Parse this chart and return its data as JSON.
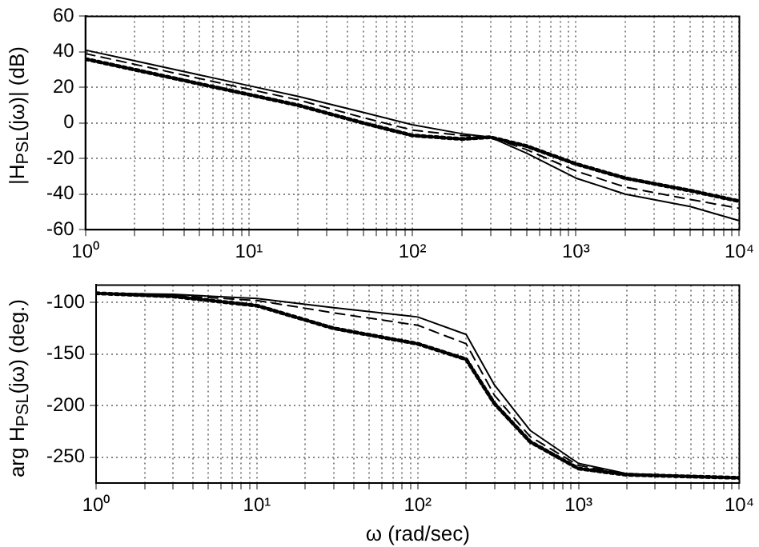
{
  "chart_data": [
    {
      "type": "line",
      "ylabel": "|H$_{PSL}$(jω)| (dB)",
      "log": "x",
      "grid": true,
      "x": [
        1,
        2,
        5,
        10,
        20,
        50,
        100,
        200,
        300,
        500,
        1000,
        2000,
        5000,
        10000
      ],
      "series": [
        {
          "color": "#000000",
          "line_style": "solid",
          "values": [
            41,
            35,
            27,
            21,
            15,
            6,
            -1,
            -6,
            -8,
            -17,
            -31,
            -40,
            -47,
            -55
          ]
        },
        {
          "color": "#000000",
          "line_style": "dashed",
          "values": [
            39,
            33,
            25,
            19,
            13,
            3,
            -4,
            -7,
            -8,
            -15,
            -27,
            -36,
            -43,
            -48
          ]
        },
        {
          "color": "#000000",
          "line_style": "dotted",
          "values": [
            36,
            30,
            22,
            16,
            10,
            0,
            -7,
            -9,
            -8,
            -13,
            -23,
            -31,
            -38,
            -44
          ]
        }
      ],
      "xlim": [
        1,
        10000
      ],
      "xticks": [
        {
          "value": 1,
          "label": "10⁰"
        },
        {
          "value": 2,
          "label": null
        },
        {
          "value": 3,
          "label": null
        },
        {
          "value": 4,
          "label": null
        },
        {
          "value": 5,
          "label": null
        },
        {
          "value": 6,
          "label": null
        },
        {
          "value": 7,
          "label": null
        },
        {
          "value": 8,
          "label": null
        },
        {
          "value": 9,
          "label": null
        },
        {
          "value": 10,
          "label": "10¹"
        },
        {
          "value": 20,
          "label": null
        },
        {
          "value": 30,
          "label": null
        },
        {
          "value": 40,
          "label": null
        },
        {
          "value": 50,
          "label": null
        },
        {
          "value": 60,
          "label": null
        },
        {
          "value": 70,
          "label": null
        },
        {
          "value": 80,
          "label": null
        },
        {
          "value": 90,
          "label": null
        },
        {
          "value": 100,
          "label": "10²"
        },
        {
          "value": 200,
          "label": null
        },
        {
          "value": 300,
          "label": null
        },
        {
          "value": 400,
          "label": null
        },
        {
          "value": 500,
          "label": null
        },
        {
          "value": 600,
          "label": null
        },
        {
          "value": 700,
          "label": null
        },
        {
          "value": 800,
          "label": null
        },
        {
          "value": 900,
          "label": null
        },
        {
          "value": 1000,
          "label": "10³"
        },
        {
          "value": 2000,
          "label": null
        },
        {
          "value": 3000,
          "label": null
        },
        {
          "value": 4000,
          "label": null
        },
        {
          "value": 5000,
          "label": null
        },
        {
          "value": 6000,
          "label": null
        },
        {
          "value": 7000,
          "label": null
        },
        {
          "value": 8000,
          "label": null
        },
        {
          "value": 9000,
          "label": null
        },
        {
          "value": 10000,
          "label": "10⁴"
        }
      ],
      "ylim": [
        -60,
        60
      ],
      "yticks": [
        -60,
        -40,
        -20,
        0,
        20,
        40,
        60
      ]
    },
    {
      "type": "line",
      "xlabel": "ω (rad/sec)",
      "ylabel": "arg H$_{PSL}$(jω) (deg.)",
      "log": "x",
      "grid": true,
      "x": [
        1,
        3,
        10,
        30,
        100,
        200,
        300,
        500,
        1000,
        2000,
        10000
      ],
      "series": [
        {
          "color": "#000000",
          "line_style": "solid",
          "values": [
            -91,
            -92,
            -96,
            -105,
            -114,
            -131,
            -180,
            -224,
            -256,
            -266,
            -270
          ]
        },
        {
          "color": "#000000",
          "line_style": "dashed",
          "values": [
            -91,
            -93,
            -98,
            -110,
            -122,
            -140,
            -190,
            -230,
            -258,
            -266,
            -270
          ]
        },
        {
          "color": "#000000",
          "line_style": "dotted",
          "values": [
            -91,
            -94,
            -103,
            -125,
            -140,
            -155,
            -198,
            -235,
            -261,
            -267,
            -270
          ]
        }
      ],
      "xlim": [
        1,
        10000
      ],
      "xticks": [
        {
          "value": 1,
          "label": "10⁰"
        },
        {
          "value": 2,
          "label": null
        },
        {
          "value": 3,
          "label": null
        },
        {
          "value": 4,
          "label": null
        },
        {
          "value": 5,
          "label": null
        },
        {
          "value": 6,
          "label": null
        },
        {
          "value": 7,
          "label": null
        },
        {
          "value": 8,
          "label": null
        },
        {
          "value": 9,
          "label": null
        },
        {
          "value": 10,
          "label": "10¹"
        },
        {
          "value": 20,
          "label": null
        },
        {
          "value": 30,
          "label": null
        },
        {
          "value": 40,
          "label": null
        },
        {
          "value": 50,
          "label": null
        },
        {
          "value": 60,
          "label": null
        },
        {
          "value": 70,
          "label": null
        },
        {
          "value": 80,
          "label": null
        },
        {
          "value": 90,
          "label": null
        },
        {
          "value": 100,
          "label": "10²"
        },
        {
          "value": 200,
          "label": null
        },
        {
          "value": 300,
          "label": null
        },
        {
          "value": 400,
          "label": null
        },
        {
          "value": 500,
          "label": null
        },
        {
          "value": 600,
          "label": null
        },
        {
          "value": 700,
          "label": null
        },
        {
          "value": 800,
          "label": null
        },
        {
          "value": 900,
          "label": null
        },
        {
          "value": 1000,
          "label": "10³"
        },
        {
          "value": 2000,
          "label": null
        },
        {
          "value": 3000,
          "label": null
        },
        {
          "value": 4000,
          "label": null
        },
        {
          "value": 5000,
          "label": null
        },
        {
          "value": 6000,
          "label": null
        },
        {
          "value": 7000,
          "label": null
        },
        {
          "value": 8000,
          "label": null
        },
        {
          "value": 9000,
          "label": null
        },
        {
          "value": 10000,
          "label": "10⁴"
        }
      ],
      "ylim": [
        -275,
        -83
      ],
      "yticks": [
        -250,
        -200,
        -150,
        -100
      ]
    }
  ]
}
